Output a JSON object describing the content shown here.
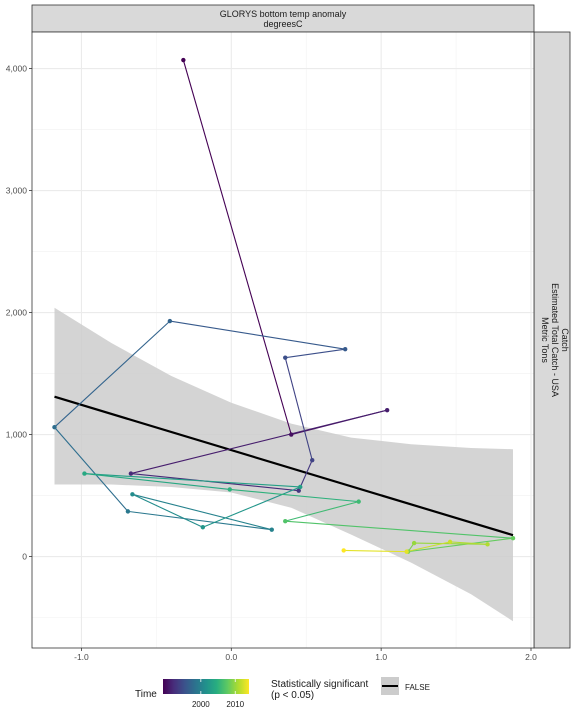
{
  "chart_data": {
    "type": "scatter",
    "strip_top": [
      "GLORYS bottom temp anomaly",
      "degreesC"
    ],
    "strip_right": [
      "Catch",
      "Estimated Total Catch - USA",
      "Metric Tons"
    ],
    "xlim": [
      -1.33,
      2.02
    ],
    "ylim": [
      -750,
      4300
    ],
    "x_ticks": [
      -1.0,
      0.0,
      1.0,
      2.0
    ],
    "x_tick_labels": [
      "-1.0",
      "0.0",
      "1.0",
      "2.0"
    ],
    "y_ticks": [
      0,
      1000,
      2000,
      3000,
      4000
    ],
    "y_tick_labels": [
      "0",
      "1,000",
      "2,000",
      "3,000",
      "4,000"
    ],
    "grid": true,
    "connected_path": [
      {
        "year": 1989,
        "x": -0.32,
        "y": 4070
      },
      {
        "year": 1990,
        "x": 0.4,
        "y": 1000
      },
      {
        "year": 1991,
        "x": 1.04,
        "y": 1200
      },
      {
        "year": 1992,
        "x": -0.67,
        "y": 680
      },
      {
        "year": 1993,
        "x": 0.45,
        "y": 540
      },
      {
        "year": 1994,
        "x": 0.54,
        "y": 790
      },
      {
        "year": 1995,
        "x": 0.36,
        "y": 1630
      },
      {
        "year": 1996,
        "x": 0.76,
        "y": 1700
      },
      {
        "year": 1997,
        "x": -0.41,
        "y": 1930
      },
      {
        "year": 1998,
        "x": -1.18,
        "y": 1060
      },
      {
        "year": 1999,
        "x": -0.69,
        "y": 370
      },
      {
        "year": 2000,
        "x": 0.27,
        "y": 220
      },
      {
        "year": 2001,
        "x": -0.66,
        "y": 510
      },
      {
        "year": 2002,
        "x": -0.19,
        "y": 240
      },
      {
        "year": 2003,
        "x": 0.46,
        "y": 570
      },
      {
        "year": 2004,
        "x": -0.98,
        "y": 680
      },
      {
        "year": 2005,
        "x": -0.01,
        "y": 550
      },
      {
        "year": 2006,
        "x": 0.85,
        "y": 450
      },
      {
        "year": 2007,
        "x": 0.36,
        "y": 290
      },
      {
        "year": 2008,
        "x": 1.88,
        "y": 150
      },
      {
        "year": 2009,
        "x": 1.18,
        "y": 40
      },
      {
        "year": 2010,
        "x": 1.22,
        "y": 110
      },
      {
        "year": 2011,
        "x": 1.71,
        "y": 100
      },
      {
        "year": 2012,
        "x": 1.46,
        "y": 120
      },
      {
        "year": 2013,
        "x": 1.17,
        "y": 40
      },
      {
        "year": 2014,
        "x": 0.75,
        "y": 50
      }
    ],
    "trend_line": {
      "x": [
        -1.18,
        1.88
      ],
      "y": [
        1310,
        175
      ],
      "color": "#000000"
    },
    "confidence_band": {
      "x": [
        -1.18,
        -0.8,
        -0.4,
        0.0,
        0.4,
        0.8,
        1.2,
        1.6,
        1.88
      ],
      "upper": [
        2040,
        1750,
        1480,
        1260,
        1090,
        975,
        920,
        890,
        880
      ],
      "lower": [
        590,
        590,
        570,
        525,
        400,
        180,
        -50,
        -310,
        -530
      ]
    }
  },
  "legend": {
    "time_title": "Time",
    "time_tick_labels": [
      "2000",
      "2010"
    ],
    "time_tick_years": [
      2000,
      2010
    ],
    "time_range": [
      1989,
      2014
    ],
    "sig_title_line1": "Statistically significant",
    "sig_title_line2": "(p < 0.05)",
    "sig_label": "FALSE"
  },
  "colors": {
    "panel_bg": "#ffffff",
    "strip_bg": "#d9d9d9",
    "band_fill": "#cccccc",
    "grid": "#ebebeb",
    "viridis": [
      "#440154",
      "#472d7b",
      "#3b528b",
      "#2c728e",
      "#21918c",
      "#28ae80",
      "#5ec962",
      "#addc30",
      "#fde725"
    ]
  }
}
